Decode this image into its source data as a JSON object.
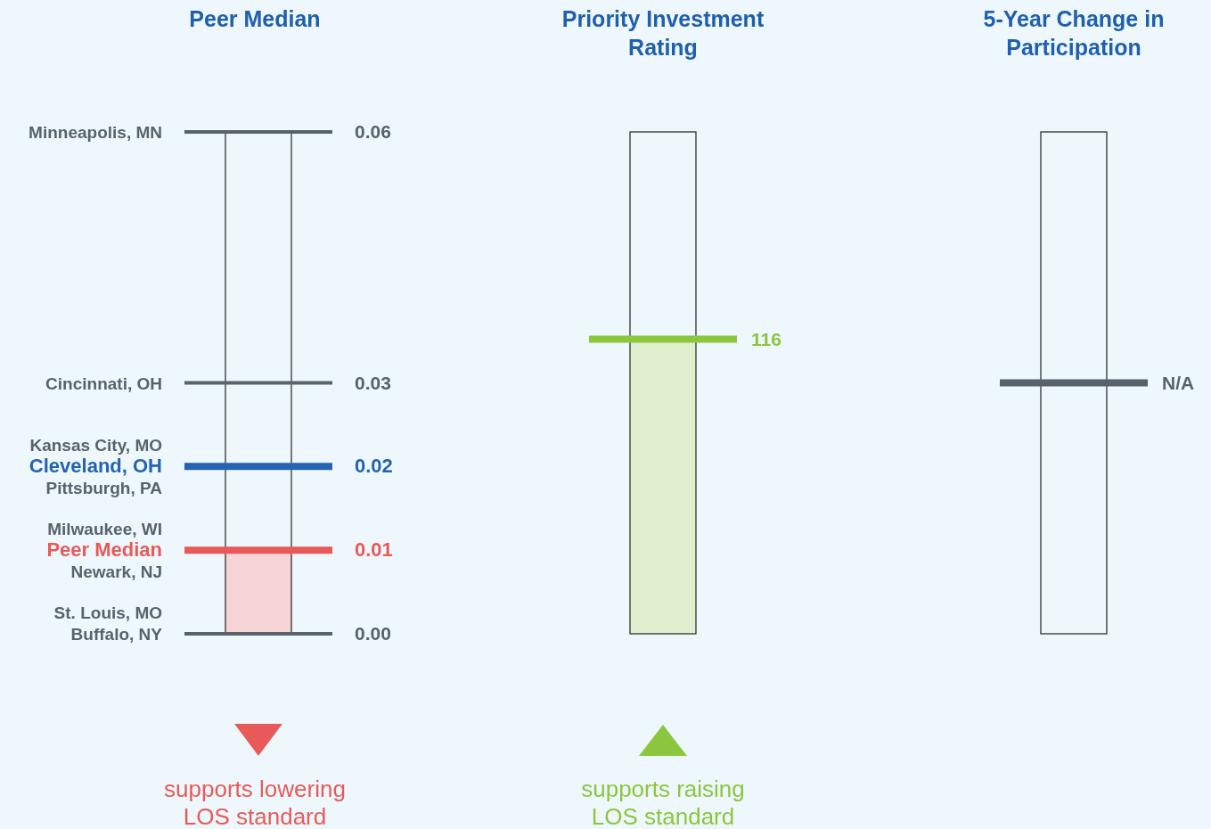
{
  "chart_data": [
    {
      "type": "other",
      "title": "Peer Median",
      "categories": [
        "Minneapolis, MN",
        "Cincinnati, OH",
        "Kansas City, MO",
        "Cleveland, OH",
        "Pittsburgh, PA",
        "Milwaukee, WI",
        "Peer Median",
        "Newark, NJ",
        "St. Louis, MO",
        "Buffalo, NY"
      ],
      "values": [
        0.06,
        0.03,
        null,
        0.02,
        null,
        null,
        0.01,
        null,
        null,
        0
      ],
      "value_labels": [
        "0.06",
        "0.03",
        null,
        "0.02",
        null,
        null,
        "0.01",
        null,
        null,
        "0.00"
      ],
      "colors": [
        "#58626b",
        "#58626b",
        "#58626b",
        "#2563b0",
        "#58626b",
        "#58626b",
        "#e85a5a",
        "#58626b",
        "#58626b",
        "#58626b"
      ],
      "color": "#e85a5a",
      "annotations": [
        "supports lowering LOS standard"
      ]
    },
    {
      "type": "other",
      "title": "Priority Investment Rating",
      "values": [
        116
      ],
      "value_labels": [
        "116"
      ],
      "colors": [
        "#8cc63f"
      ],
      "color": "#8cc63f",
      "annotations": [
        "supports raising LOS standard"
      ]
    },
    {
      "type": "other",
      "title": "5-Year Change in Participation",
      "values": [
        null
      ],
      "value_labels": [
        "N/A"
      ],
      "colors": [
        "#58626b"
      ]
    }
  ]
}
